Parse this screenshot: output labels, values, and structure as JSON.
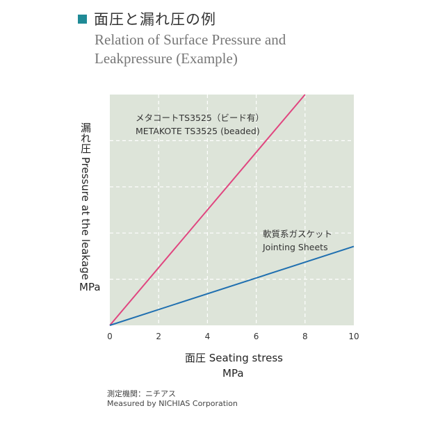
{
  "header": {
    "title_jp": "面圧と漏れ圧の例",
    "title_en_line1": "Relation of Surface Pressure and",
    "title_en_line2": "Leakpressure (Example)"
  },
  "chart_data": {
    "type": "line",
    "xlabel": "面圧  Seating stress",
    "xunit": "MPa",
    "ylabel": "漏れ圧  Pressure at the leakage",
    "yunit": "MPa",
    "xlim": [
      0,
      10
    ],
    "xticks": [
      "0",
      "2",
      "4",
      "6",
      "8",
      "10"
    ],
    "y_tick_labels_shown": false,
    "grid": true,
    "series": [
      {
        "name_jp": "メタコートTS3525（ビード有）",
        "name_en": "METAKOTE TS3525 (beaded)",
        "color": "#e0457f",
        "x": [
          0,
          8
        ],
        "y": [
          0,
          10
        ]
      },
      {
        "name_jp": "軟質系ガスケット",
        "name_en": "Jointing Sheets",
        "color": "#1f6fb0",
        "x": [
          0,
          10
        ],
        "y": [
          0,
          3.42
        ]
      }
    ]
  },
  "footer": {
    "note_jp": "測定機関：ニチアス",
    "note_en": "Measured by NICHIAS Corporation"
  },
  "colors": {
    "plot_background": "#dde4d9",
    "grid": "#ffffff",
    "accent_square": "#1f8a96"
  }
}
